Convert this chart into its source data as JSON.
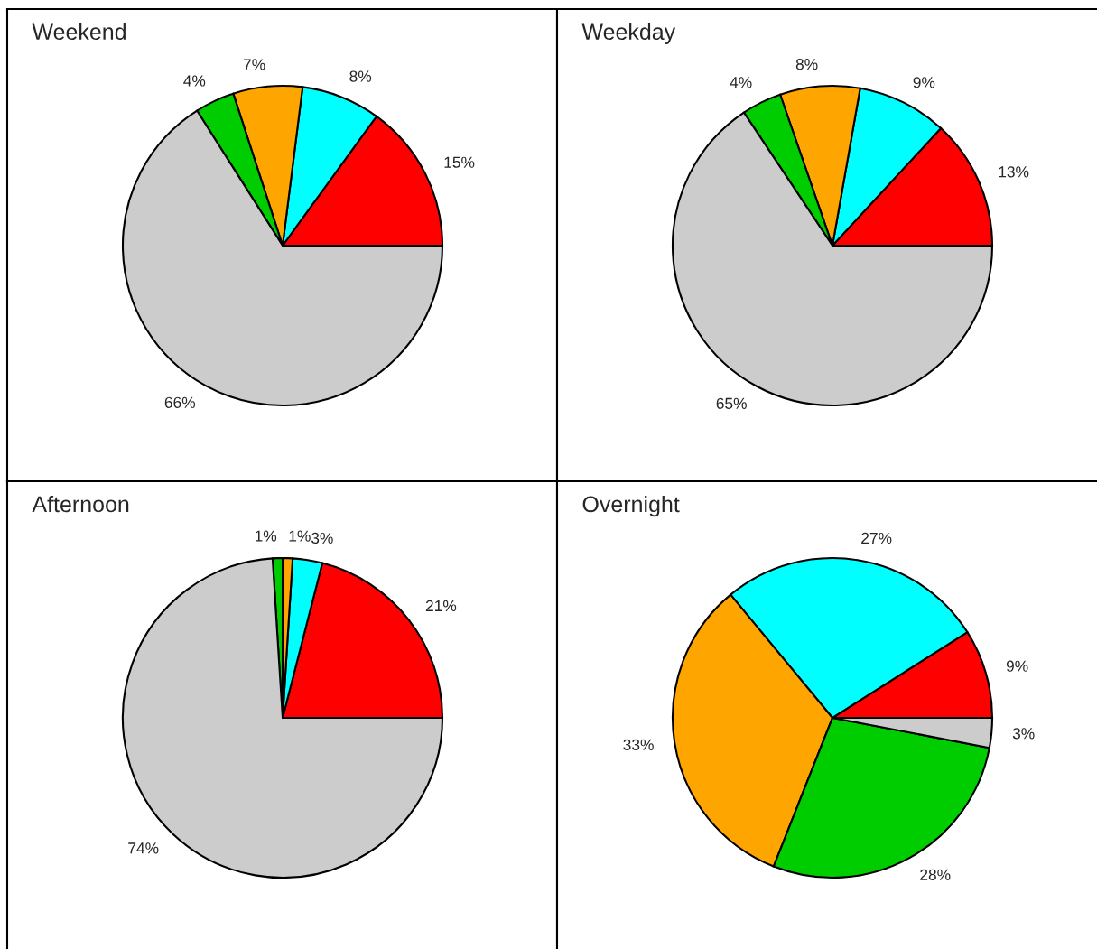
{
  "chart_data": [
    {
      "type": "pie",
      "title": "Weekend",
      "categories": [
        null,
        null,
        null,
        null,
        null
      ],
      "values": [
        15,
        8,
        7,
        4,
        66
      ],
      "value_labels": [
        "15%",
        "8%",
        "7%",
        "4%",
        "66%"
      ],
      "colors": [
        "#ff0000",
        "#00ffff",
        "#ffa500",
        "#00cd00",
        "#cccccc"
      ],
      "legend": false
    },
    {
      "type": "pie",
      "title": "Weekday",
      "categories": [
        null,
        null,
        null,
        null,
        null
      ],
      "values": [
        13,
        9,
        8,
        4,
        65
      ],
      "value_labels": [
        "13%",
        "9%",
        "8%",
        "4%",
        "65%"
      ],
      "colors": [
        "#ff0000",
        "#00ffff",
        "#ffa500",
        "#00cd00",
        "#cccccc"
      ],
      "legend": false
    },
    {
      "type": "pie",
      "title": "Afternoon",
      "categories": [
        null,
        null,
        null,
        null,
        null
      ],
      "values": [
        21,
        3,
        1,
        1,
        74
      ],
      "value_labels": [
        "21%",
        "3%",
        "1%",
        "1%",
        "74%"
      ],
      "colors": [
        "#ff0000",
        "#00ffff",
        "#ffa500",
        "#00cd00",
        "#cccccc"
      ],
      "legend": false
    },
    {
      "type": "pie",
      "title": "Overnight",
      "categories": [
        null,
        null,
        null,
        null,
        null
      ],
      "values": [
        9,
        27,
        33,
        28,
        3
      ],
      "value_labels": [
        "9%",
        "27%",
        "33%",
        "28%",
        "3%"
      ],
      "colors": [
        "#ff0000",
        "#00ffff",
        "#ffa500",
        "#00cd00",
        "#cccccc"
      ],
      "legend": false
    }
  ]
}
